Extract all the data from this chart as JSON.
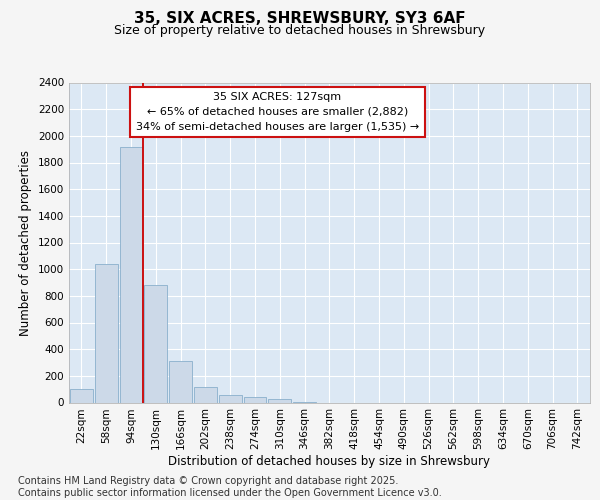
{
  "title": "35, SIX ACRES, SHREWSBURY, SY3 6AF",
  "subtitle": "Size of property relative to detached houses in Shrewsbury",
  "xlabel": "Distribution of detached houses by size in Shrewsbury",
  "ylabel": "Number of detached properties",
  "categories": [
    "22sqm",
    "58sqm",
    "94sqm",
    "130sqm",
    "166sqm",
    "202sqm",
    "238sqm",
    "274sqm",
    "310sqm",
    "346sqm",
    "382sqm",
    "418sqm",
    "454sqm",
    "490sqm",
    "526sqm",
    "562sqm",
    "598sqm",
    "634sqm",
    "670sqm",
    "706sqm",
    "742sqm"
  ],
  "values": [
    100,
    1040,
    1920,
    880,
    315,
    115,
    55,
    40,
    30,
    5,
    0,
    0,
    0,
    0,
    0,
    0,
    0,
    0,
    0,
    0,
    0
  ],
  "bar_color": "#ccd9e8",
  "bar_edge_color": "#8ab0cc",
  "vline_x_index": 2.5,
  "vline_color": "#cc1111",
  "annotation_line1": "35 SIX ACRES: 127sqm",
  "annotation_line2": "← 65% of detached houses are smaller (2,882)",
  "annotation_line3": "34% of semi-detached houses are larger (1,535) →",
  "annotation_box_facecolor": "#ffffff",
  "annotation_box_edgecolor": "#cc1111",
  "ylim_max": 2400,
  "ytick_step": 200,
  "plot_bg_color": "#dce8f4",
  "fig_bg_color": "#f5f5f5",
  "grid_color": "#ffffff",
  "footer1": "Contains HM Land Registry data © Crown copyright and database right 2025.",
  "footer2": "Contains public sector information licensed under the Open Government Licence v3.0.",
  "title_fontsize": 11,
  "subtitle_fontsize": 9,
  "axis_label_fontsize": 8.5,
  "tick_fontsize": 7.5,
  "annotation_fontsize": 8,
  "footer_fontsize": 7
}
